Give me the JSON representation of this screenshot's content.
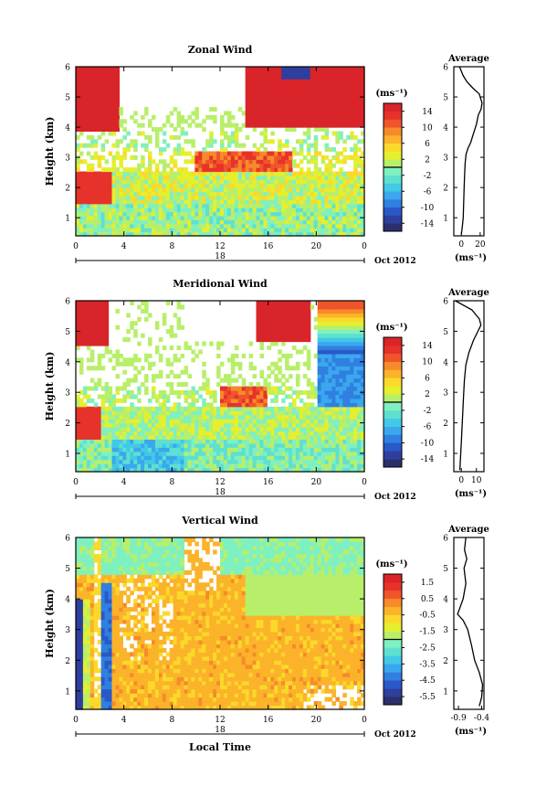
{
  "chart_data": [
    {
      "type": "heatmap",
      "title": "Zonal Wind",
      "ylabel": "Height (km)",
      "x_ticks": [
        "0",
        "4",
        "8",
        "12",
        "16",
        "20",
        "0"
      ],
      "x_range_hours": [
        0,
        24
      ],
      "y_ticks": [
        "1",
        "2",
        "3",
        "4",
        "5",
        "6"
      ],
      "ylim": [
        0.4,
        6.0
      ],
      "date_label": "18",
      "month_label": "Oct 2012",
      "colorbar": {
        "unit": "(ms⁻¹)",
        "ticks": [
          "14",
          "10",
          "6",
          "2",
          "-2",
          "-6",
          "-10",
          "-14"
        ],
        "range": [
          -16,
          16
        ],
        "colors": [
          "#2b2f6b",
          "#2e3f9e",
          "#2a58c9",
          "#2f80e0",
          "#3aa7ee",
          "#42c9e6",
          "#5ee0d0",
          "#7ff0c0",
          "#b8ef6a",
          "#e6ef2e",
          "#fbd92a",
          "#fbb32a",
          "#f78a2a",
          "#f0552a",
          "#e6322a",
          "#d9242a"
        ]
      },
      "average_profile": {
        "title": "Average",
        "unit": "(ms⁻¹)",
        "x_ticks": [
          "0",
          "20"
        ],
        "xlim": [
          -8,
          24
        ],
        "y_ticks": [
          "1",
          "2",
          "3",
          "4",
          "5",
          "6"
        ],
        "ylim": [
          0.4,
          6.0
        ],
        "points": [
          [
            0,
            0.45
          ],
          [
            1,
            0.7
          ],
          [
            2,
            1.0
          ],
          [
            2.5,
            1.5
          ],
          [
            3,
            2.0
          ],
          [
            3.5,
            2.5
          ],
          [
            4,
            2.8
          ],
          [
            5,
            3.1
          ],
          [
            7,
            3.3
          ],
          [
            10,
            3.5
          ],
          [
            12,
            3.7
          ],
          [
            14,
            3.9
          ],
          [
            16,
            4.1
          ],
          [
            18,
            4.4
          ],
          [
            21,
            4.6
          ],
          [
            22,
            4.8
          ],
          [
            19,
            5.1
          ],
          [
            12,
            5.3
          ],
          [
            6,
            5.5
          ],
          [
            2,
            5.7
          ],
          [
            -2,
            6.0
          ]
        ]
      }
    },
    {
      "type": "heatmap",
      "title": "Meridional Wind",
      "ylabel": "Height (km)",
      "x_ticks": [
        "0",
        "4",
        "8",
        "12",
        "16",
        "20",
        "0"
      ],
      "x_range_hours": [
        0,
        24
      ],
      "y_ticks": [
        "1",
        "2",
        "3",
        "4",
        "5",
        "6"
      ],
      "ylim": [
        0.4,
        6.0
      ],
      "date_label": "18",
      "month_label": "Oct 2012",
      "colorbar": {
        "unit": "(ms⁻¹)",
        "ticks": [
          "14",
          "10",
          "6",
          "2",
          "-2",
          "-6",
          "-10",
          "-14"
        ],
        "range": [
          -16,
          16
        ]
      },
      "average_profile": {
        "title": "Average",
        "unit": "(ms⁻¹)",
        "x_ticks": [
          "0",
          "10"
        ],
        "xlim": [
          -5,
          15
        ],
        "y_ticks": [
          "1",
          "2",
          "3",
          "4",
          "5",
          "6"
        ],
        "ylim": [
          0.4,
          6.0
        ],
        "points": [
          [
            -1,
            0.45
          ],
          [
            -0.5,
            0.9
          ],
          [
            0,
            1.4
          ],
          [
            0.5,
            1.9
          ],
          [
            1,
            2.4
          ],
          [
            1.5,
            2.9
          ],
          [
            2,
            3.4
          ],
          [
            3,
            3.9
          ],
          [
            5,
            4.3
          ],
          [
            8,
            4.7
          ],
          [
            11,
            5.0
          ],
          [
            13,
            5.2
          ],
          [
            12,
            5.4
          ],
          [
            7,
            5.7
          ],
          [
            -4,
            6.0
          ]
        ]
      }
    },
    {
      "type": "heatmap",
      "title": "Vertical Wind",
      "xlabel": "Local Time",
      "ylabel": "Height (km)",
      "x_ticks": [
        "0",
        "4",
        "8",
        "12",
        "16",
        "20",
        "0"
      ],
      "x_range_hours": [
        0,
        24
      ],
      "y_ticks": [
        "1",
        "2",
        "3",
        "4",
        "5",
        "6"
      ],
      "ylim": [
        0.4,
        6.0
      ],
      "date_label": "18",
      "month_label": "Oct 2012",
      "colorbar": {
        "unit": "(ms⁻¹)",
        "ticks": [
          "1.5",
          "0.5",
          "-0.5",
          "-1.5",
          "-2.5",
          "-3.5",
          "-4.5",
          "-5.5"
        ],
        "range": [
          -6.0,
          2.0
        ]
      },
      "average_profile": {
        "title": "Average",
        "unit": "(ms⁻¹)",
        "x_ticks": [
          "-0.9",
          "-0.4"
        ],
        "xlim": [
          -1.0,
          -0.35
        ],
        "y_ticks": [
          "1",
          "2",
          "3",
          "4",
          "5",
          "6"
        ],
        "ylim": [
          0.4,
          6.0
        ],
        "points": [
          [
            -0.45,
            0.5
          ],
          [
            -0.4,
            0.8
          ],
          [
            -0.38,
            1.2
          ],
          [
            -0.45,
            1.6
          ],
          [
            -0.55,
            2.0
          ],
          [
            -0.62,
            2.5
          ],
          [
            -0.7,
            3.0
          ],
          [
            -0.8,
            3.3
          ],
          [
            -0.92,
            3.5
          ],
          [
            -0.87,
            3.7
          ],
          [
            -0.8,
            4.0
          ],
          [
            -0.74,
            4.5
          ],
          [
            -0.78,
            5.0
          ],
          [
            -0.72,
            5.3
          ],
          [
            -0.77,
            5.6
          ],
          [
            -0.74,
            6.0
          ]
        ]
      }
    }
  ]
}
